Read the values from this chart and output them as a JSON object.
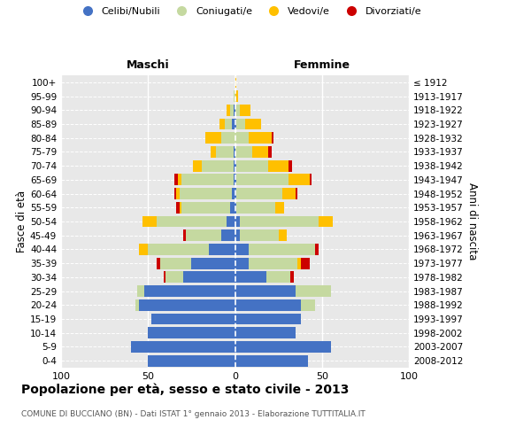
{
  "age_groups": [
    "0-4",
    "5-9",
    "10-14",
    "15-19",
    "20-24",
    "25-29",
    "30-34",
    "35-39",
    "40-44",
    "45-49",
    "50-54",
    "55-59",
    "60-64",
    "65-69",
    "70-74",
    "75-79",
    "80-84",
    "85-89",
    "90-94",
    "95-99",
    "100+"
  ],
  "birth_years": [
    "2008-2012",
    "2003-2007",
    "1998-2002",
    "1993-1997",
    "1988-1992",
    "1983-1987",
    "1978-1982",
    "1973-1977",
    "1968-1972",
    "1963-1967",
    "1958-1962",
    "1953-1957",
    "1948-1952",
    "1943-1947",
    "1938-1942",
    "1933-1937",
    "1928-1932",
    "1923-1927",
    "1918-1922",
    "1913-1917",
    "≤ 1912"
  ],
  "maschi": {
    "celibi": [
      50,
      60,
      50,
      48,
      55,
      52,
      30,
      25,
      15,
      8,
      5,
      3,
      2,
      1,
      1,
      1,
      0,
      2,
      1,
      0,
      0
    ],
    "coniugati": [
      0,
      0,
      0,
      0,
      2,
      4,
      10,
      18,
      35,
      20,
      40,
      28,
      30,
      30,
      18,
      10,
      8,
      4,
      2,
      1,
      0
    ],
    "vedovi": [
      0,
      0,
      0,
      0,
      0,
      0,
      0,
      0,
      5,
      0,
      8,
      1,
      2,
      2,
      5,
      3,
      9,
      3,
      2,
      0,
      0
    ],
    "divorziati": [
      0,
      0,
      0,
      0,
      0,
      0,
      1,
      2,
      0,
      2,
      0,
      2,
      1,
      2,
      0,
      0,
      0,
      0,
      0,
      0,
      0
    ]
  },
  "femmine": {
    "nubili": [
      42,
      55,
      35,
      38,
      38,
      35,
      18,
      8,
      8,
      3,
      3,
      1,
      1,
      1,
      1,
      0,
      0,
      1,
      0,
      0,
      0
    ],
    "coniugate": [
      0,
      0,
      0,
      0,
      8,
      20,
      14,
      28,
      38,
      22,
      45,
      22,
      26,
      30,
      18,
      10,
      8,
      5,
      3,
      0,
      0
    ],
    "vedove": [
      0,
      0,
      0,
      0,
      0,
      0,
      0,
      2,
      0,
      5,
      8,
      5,
      8,
      12,
      12,
      9,
      13,
      9,
      6,
      2,
      1
    ],
    "divorziate": [
      0,
      0,
      0,
      0,
      0,
      0,
      2,
      5,
      2,
      0,
      0,
      0,
      1,
      1,
      2,
      2,
      1,
      0,
      0,
      0,
      0
    ]
  },
  "colors": {
    "celibi": "#4472c4",
    "coniugati": "#c5d9a0",
    "vedovi": "#ffc000",
    "divorziati": "#cc0000"
  },
  "xlim": 100,
  "title": "Popolazione per età, sesso e stato civile - 2013",
  "subtitle": "COMUNE DI BUCCIANO (BN) - Dati ISTAT 1° gennaio 2013 - Elaborazione TUTTITALIA.IT",
  "ylabel_left": "Fasce di età",
  "ylabel_right": "Anni di nascita",
  "xlabel_maschi": "Maschi",
  "xlabel_femmine": "Femmine",
  "bg_color": "#e8e8e8"
}
